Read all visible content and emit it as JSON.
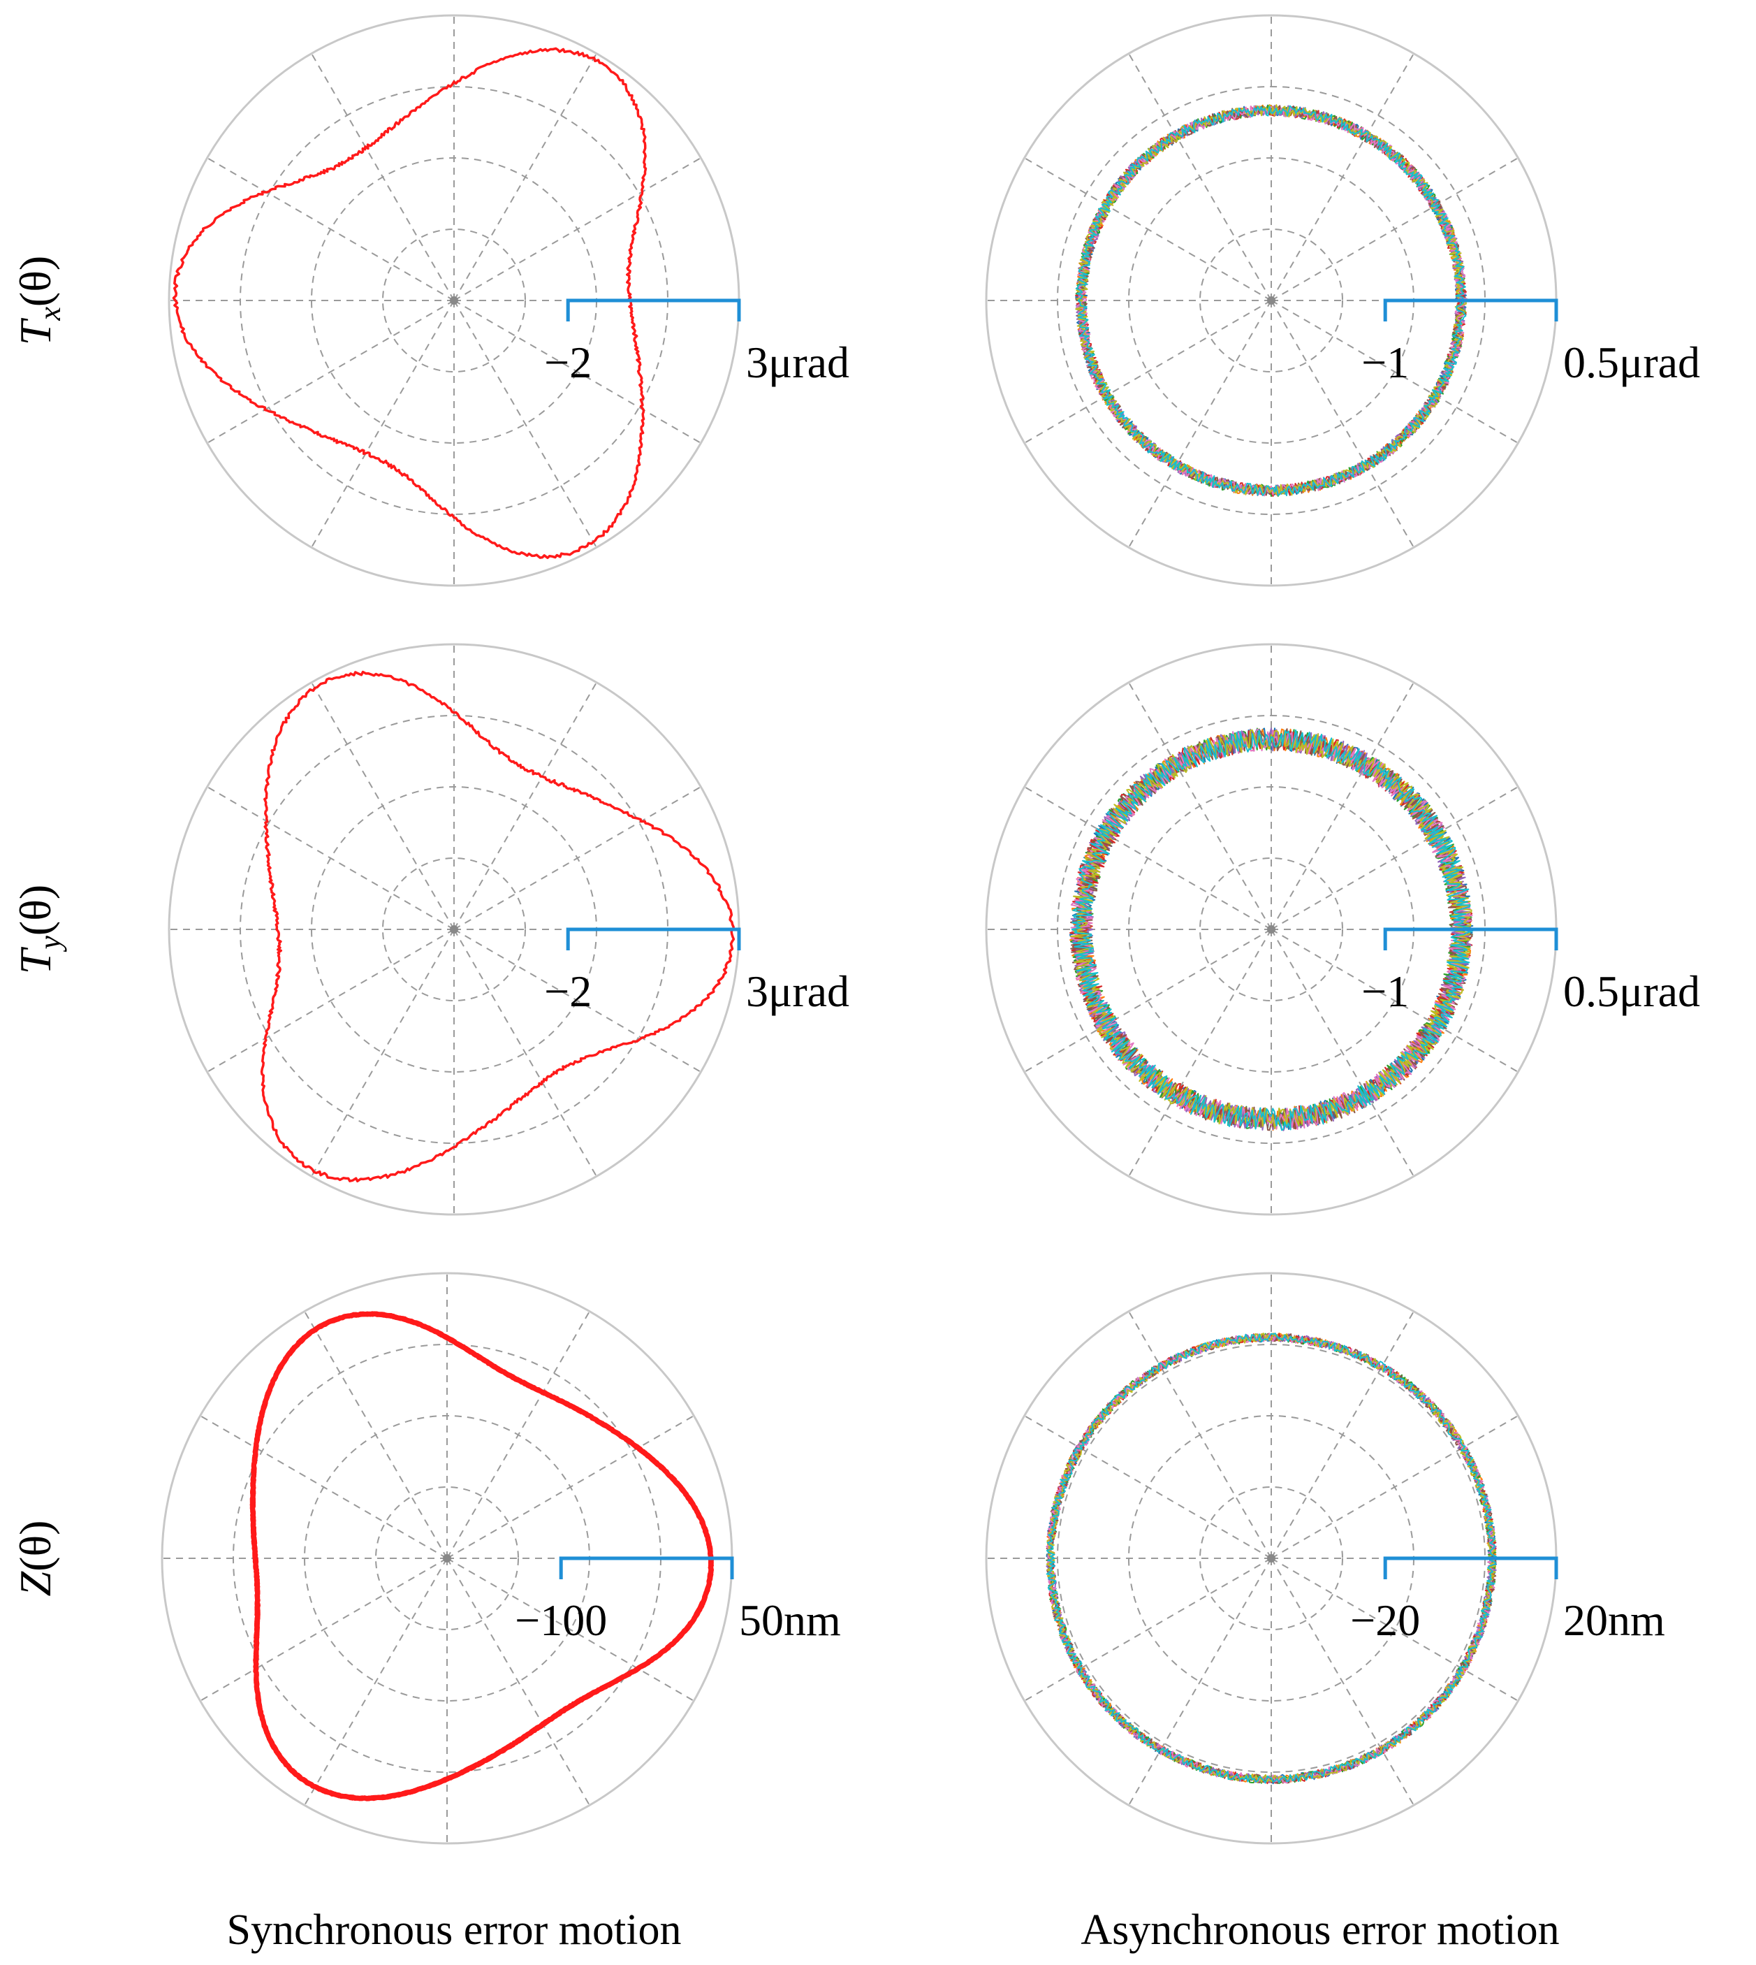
{
  "figure": {
    "row_labels": [
      {
        "main": "T",
        "sub": "x",
        "arg": "(θ)"
      },
      {
        "main": "T",
        "sub": "y",
        "arg": "(θ)"
      },
      {
        "main": "Z",
        "sub": "",
        "arg": "(θ)"
      }
    ],
    "column_captions": [
      "Synchronous error motion",
      "Asynchronous error motion"
    ],
    "colors": {
      "grid": "#9a9a9a",
      "outer_ring": "#c8c8c8",
      "scale_bar": "#1f8fd6",
      "sync_trace": "#ff1a1a",
      "async_traces": [
        "#1f77b4",
        "#ff7f0e",
        "#2ca02c",
        "#d62728",
        "#9467bd",
        "#8c564b",
        "#e377c2",
        "#bcbd22",
        "#17becf"
      ]
    }
  },
  "chart_data": [
    {
      "type": "polar-line",
      "panel": "Tx synchronous",
      "radial_range": [
        -2,
        3
      ],
      "scale_labels": {
        "min": "−2",
        "max": "3μrad"
      },
      "unit": "μrad",
      "lobes": 3,
      "lobe_peak_angles_deg": [
        60,
        180,
        300
      ],
      "r_mean": 1.9,
      "r_amplitude": 0.9,
      "noise": 0.03,
      "series": [
        {
          "name": "",
          "count": 1
        }
      ]
    },
    {
      "type": "polar-line",
      "panel": "Tx asynchronous",
      "radial_range": [
        -1,
        0.5
      ],
      "scale_labels": {
        "min": "−1",
        "max": "0.5μrad"
      },
      "unit": "μrad",
      "lobes": 0,
      "r_mean": 0.0,
      "r_amplitude": 0.0,
      "noise": 0.03,
      "series": [
        {
          "name": "",
          "count": 9
        }
      ]
    },
    {
      "type": "polar-line",
      "panel": "Ty synchronous",
      "radial_range": [
        -2,
        3
      ],
      "scale_labels": {
        "min": "−2",
        "max": "3μrad"
      },
      "unit": "μrad",
      "lobes": 3,
      "lobe_peak_angles_deg": [
        0,
        120,
        240
      ],
      "r_mean": 1.9,
      "r_amplitude": 0.9,
      "noise": 0.03,
      "series": [
        {
          "name": "",
          "count": 1
        }
      ]
    },
    {
      "type": "polar-line",
      "panel": "Ty asynchronous",
      "radial_range": [
        -1,
        0.5
      ],
      "scale_labels": {
        "min": "−1",
        "max": "0.5μrad"
      },
      "unit": "μrad",
      "lobes": 0,
      "r_mean": 0.0,
      "r_amplitude": 0.0,
      "noise": 0.06,
      "series": [
        {
          "name": "",
          "count": 9
        }
      ]
    },
    {
      "type": "polar-line",
      "panel": "Z synchronous",
      "radial_range": [
        -100,
        50
      ],
      "scale_labels": {
        "min": "−100",
        "max": "50nm"
      },
      "unit": "nm",
      "lobes": 3,
      "lobe_peak_angles_deg": [
        0,
        120,
        240
      ],
      "r_mean": 18,
      "r_amplitude": 19,
      "noise": 0.3,
      "series": [
        {
          "name": "",
          "count": 3
        }
      ]
    },
    {
      "type": "polar-line",
      "panel": "Z asynchronous",
      "radial_range": [
        -20,
        20
      ],
      "scale_labels": {
        "min": "−20",
        "max": "20nm"
      },
      "unit": "nm",
      "lobes": 0,
      "r_mean": 11,
      "r_amplitude": 0,
      "noise": 0.6,
      "series": [
        {
          "name": "",
          "count": 9
        }
      ]
    }
  ]
}
